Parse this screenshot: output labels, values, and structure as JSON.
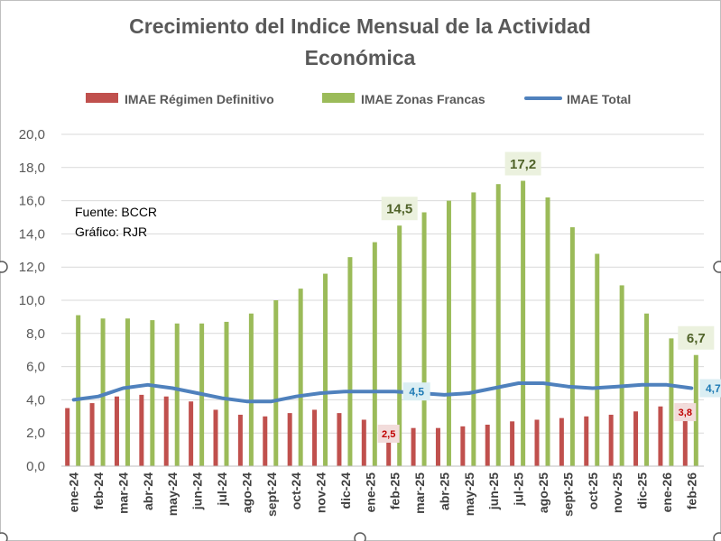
{
  "colors": {
    "regimen": "#C0504D",
    "zonas": "#9BBB59",
    "total": "#4F81BD",
    "grid": "#D9D9D9",
    "border": "#BFBFBF",
    "label_zonas_bg": "#EBF1DE",
    "label_zonas_text": "#4F6228",
    "label_total_bg": "#DAEEF3",
    "label_total_text": "#1F7BB5",
    "label_regimen_bg": "#F2DCDB",
    "label_regimen_text": "#C00000"
  },
  "notes": {
    "source": "Fuente:  BCCR",
    "graph": "Gráfico:  RJR"
  },
  "chart_data": {
    "type": "bar",
    "title_line1": "Crecimiento del Indice Mensual de la Actividad",
    "title_line2": "Económica",
    "legend_position": "top",
    "grid": true,
    "ylim": [
      0,
      20
    ],
    "y_ticks": [
      "0,0",
      "2,0",
      "4,0",
      "6,0",
      "8,0",
      "10,0",
      "12,0",
      "14,0",
      "16,0",
      "18,0",
      "20,0"
    ],
    "categories": [
      "ene-24",
      "feb-24",
      "mar-24",
      "abr-24",
      "may-24",
      "jun-24",
      "jul-24",
      "ago-24",
      "sept-24",
      "oct-24",
      "nov-24",
      "dic-24",
      "ene-25",
      "feb-25",
      "mar-25",
      "abr-25",
      "may-25",
      "jun-25",
      "jul-25",
      "ago-25",
      "sept-25",
      "oct-25",
      "nov-25",
      "dic-25",
      "ene-26",
      "feb-26"
    ],
    "series": [
      {
        "name": "IMAE Régimen Definitivo",
        "kind": "bar",
        "values": [
          3.5,
          3.8,
          4.2,
          4.3,
          4.2,
          3.9,
          3.4,
          3.1,
          3.0,
          3.2,
          3.4,
          3.2,
          2.8,
          2.5,
          2.3,
          2.3,
          2.4,
          2.5,
          2.7,
          2.8,
          2.9,
          3.0,
          3.1,
          3.3,
          3.6,
          3.8
        ]
      },
      {
        "name": "IMAE Zonas Francas",
        "kind": "bar",
        "values": [
          9.1,
          8.9,
          8.9,
          8.8,
          8.6,
          8.6,
          8.7,
          9.2,
          10.0,
          10.7,
          11.6,
          12.6,
          13.5,
          14.5,
          15.3,
          16.0,
          16.5,
          17.0,
          17.2,
          16.2,
          14.4,
          12.8,
          10.9,
          9.2,
          7.7,
          6.7
        ]
      },
      {
        "name": "IMAE Total",
        "kind": "line",
        "values": [
          4.0,
          4.2,
          4.7,
          4.9,
          4.7,
          4.4,
          4.1,
          3.9,
          3.9,
          4.2,
          4.4,
          4.5,
          4.5,
          4.5,
          4.4,
          4.3,
          4.4,
          4.7,
          5.0,
          5.0,
          4.8,
          4.7,
          4.8,
          4.9,
          4.9,
          4.7
        ]
      }
    ],
    "data_labels": [
      {
        "series": "IMAE Zonas Francas",
        "category": "feb-25",
        "text": "14,5"
      },
      {
        "series": "IMAE Zonas Francas",
        "category": "jul-25",
        "text": "17,2"
      },
      {
        "series": "IMAE Zonas Francas",
        "category": "feb-26",
        "text": "6,7"
      },
      {
        "series": "IMAE Total",
        "category": "feb-25",
        "text": "4,5"
      },
      {
        "series": "IMAE Total",
        "category": "feb-26",
        "text": "4,7"
      },
      {
        "series": "IMAE Régimen Definitivo",
        "category": "feb-25",
        "text": "2,5"
      },
      {
        "series": "IMAE Régimen Definitivo",
        "category": "feb-26",
        "text": "3,8"
      }
    ]
  }
}
